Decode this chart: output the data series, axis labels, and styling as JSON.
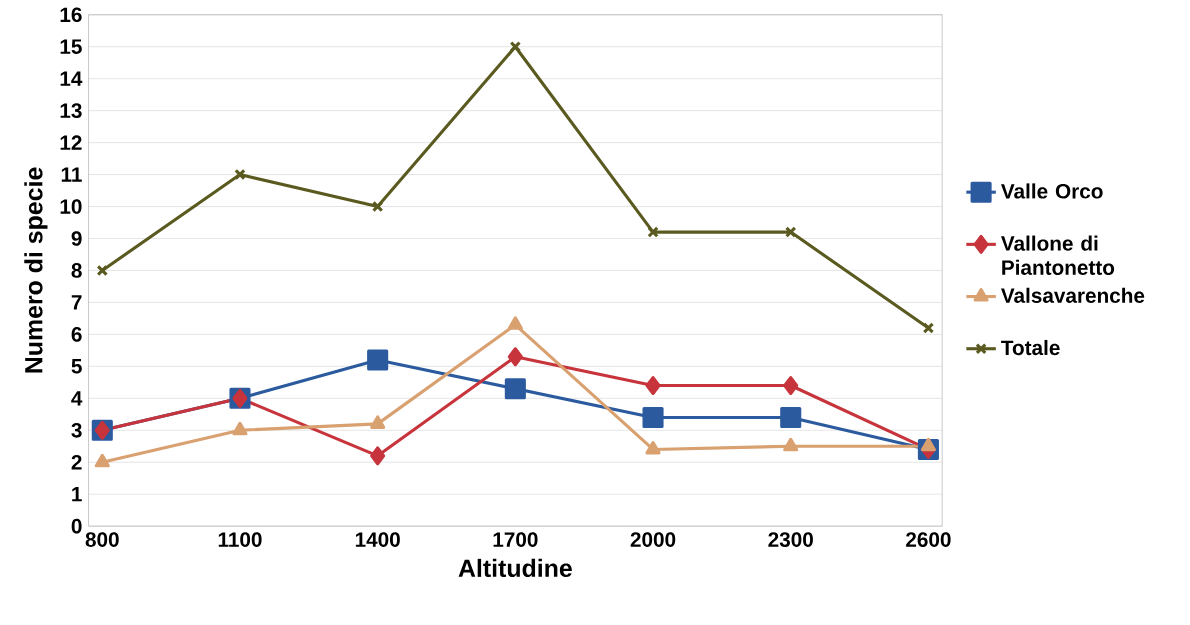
{
  "chart_data": {
    "type": "line",
    "xlabel": "Altitudine",
    "ylabel": "Numero di specie",
    "categories": [
      "800",
      "1100",
      "1400",
      "1700",
      "2000",
      "2300",
      "2600"
    ],
    "series": [
      {
        "name": "Valle Orco",
        "color": "#2b5a9e",
        "marker": "square",
        "values": [
          3,
          4,
          5.2,
          4.3,
          3.4,
          3.4,
          2.4
        ]
      },
      {
        "name": "Vallone di Piantonetto",
        "color": "#c7343c",
        "marker": "diamond",
        "values": [
          3,
          4,
          2.2,
          5.3,
          4.4,
          4.4,
          2.4
        ]
      },
      {
        "name": "Valsavarenche",
        "color": "#d9a070",
        "marker": "triangle",
        "values": [
          2,
          3,
          3.2,
          6.3,
          2.4,
          2.5,
          2.5
        ]
      },
      {
        "name": "Totale",
        "color": "#5a5a20",
        "marker": "cross",
        "values": [
          8,
          11,
          10,
          15,
          9.2,
          9.2,
          6.2
        ]
      }
    ],
    "ylim": [
      0,
      16
    ],
    "yticks": [
      0,
      1,
      2,
      3,
      4,
      5,
      6,
      7,
      8,
      9,
      10,
      11,
      12,
      13,
      14,
      15,
      16
    ],
    "grid": "y",
    "legend": "right"
  }
}
